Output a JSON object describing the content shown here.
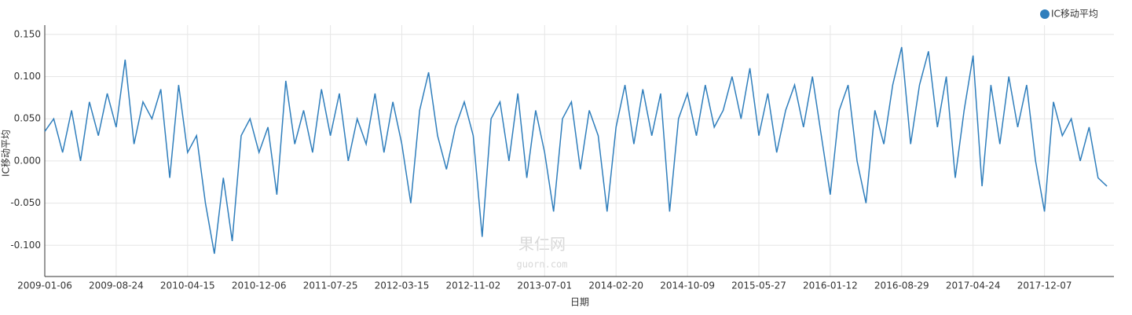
{
  "chart_data": {
    "type": "line",
    "x_label": "日期",
    "y_label": "IC移动平均",
    "watermark": "果仁网",
    "watermark_sub": "guorn.com",
    "categories": [
      "2009-01-06",
      null,
      null,
      null,
      null,
      null,
      null,
      null,
      "2009-08-24",
      null,
      null,
      null,
      null,
      null,
      null,
      null,
      "2010-04-15",
      null,
      null,
      null,
      null,
      null,
      null,
      null,
      "2010-12-06",
      null,
      null,
      null,
      null,
      null,
      null,
      null,
      "2011-07-25",
      null,
      null,
      null,
      null,
      null,
      null,
      null,
      "2012-03-15",
      null,
      null,
      null,
      null,
      null,
      null,
      null,
      "2012-11-02",
      null,
      null,
      null,
      null,
      null,
      null,
      null,
      "2013-07-01",
      null,
      null,
      null,
      null,
      null,
      null,
      null,
      "2014-02-20",
      null,
      null,
      null,
      null,
      null,
      null,
      null,
      "2014-10-09",
      null,
      null,
      null,
      null,
      null,
      null,
      null,
      "2015-05-27",
      null,
      null,
      null,
      null,
      null,
      null,
      null,
      "2016-01-12",
      null,
      null,
      null,
      null,
      null,
      null,
      null,
      "2016-08-29",
      null,
      null,
      null,
      null,
      null,
      null,
      null,
      "2017-04-24",
      null,
      null,
      null,
      null,
      null,
      null,
      null,
      "2017-12-07",
      null,
      null,
      null,
      null,
      null,
      null,
      null
    ],
    "series": [
      {
        "name": "IC移动平均",
        "color": "#2f7ebc",
        "values": [
          0.035,
          0.05,
          0.01,
          0.06,
          0.0,
          0.07,
          0.03,
          0.08,
          0.04,
          0.12,
          0.02,
          0.07,
          0.05,
          0.085,
          -0.02,
          0.09,
          0.01,
          0.03,
          -0.05,
          -0.11,
          -0.02,
          -0.095,
          0.03,
          0.05,
          0.01,
          0.04,
          -0.04,
          0.095,
          0.02,
          0.06,
          0.01,
          0.085,
          0.03,
          0.08,
          0.0,
          0.05,
          0.02,
          0.08,
          0.01,
          0.07,
          0.02,
          -0.05,
          0.06,
          0.105,
          0.03,
          -0.01,
          0.04,
          0.07,
          0.03,
          -0.09,
          0.05,
          0.07,
          0.0,
          0.08,
          -0.02,
          0.06,
          0.01,
          -0.06,
          0.05,
          0.07,
          -0.01,
          0.06,
          0.03,
          -0.06,
          0.04,
          0.09,
          0.02,
          0.085,
          0.03,
          0.08,
          -0.06,
          0.05,
          0.08,
          0.03,
          0.09,
          0.04,
          0.06,
          0.1,
          0.05,
          0.11,
          0.03,
          0.08,
          0.01,
          0.06,
          0.09,
          0.04,
          0.1,
          0.03,
          -0.04,
          0.06,
          0.09,
          0.0,
          -0.05,
          0.06,
          0.02,
          0.09,
          0.135,
          0.02,
          0.09,
          0.13,
          0.04,
          0.1,
          -0.02,
          0.06,
          0.125,
          -0.03,
          0.09,
          0.02,
          0.1,
          0.04,
          0.09,
          0.0,
          -0.06,
          0.07,
          0.03,
          0.05,
          0.0,
          0.04,
          -0.02,
          -0.03
        ]
      }
    ],
    "ylim": [
      -0.137,
      0.161
    ],
    "yticks": [
      {
        "value": -0.1,
        "label": "-0.100"
      },
      {
        "value": -0.05,
        "label": "-0.050"
      },
      {
        "value": 0,
        "label": "0.000"
      },
      {
        "value": 0.05,
        "label": "0.050"
      },
      {
        "value": 0.1,
        "label": "0.100"
      },
      {
        "value": 0.15,
        "label": "0.150"
      }
    ],
    "grid": true,
    "legend": "top-right"
  }
}
